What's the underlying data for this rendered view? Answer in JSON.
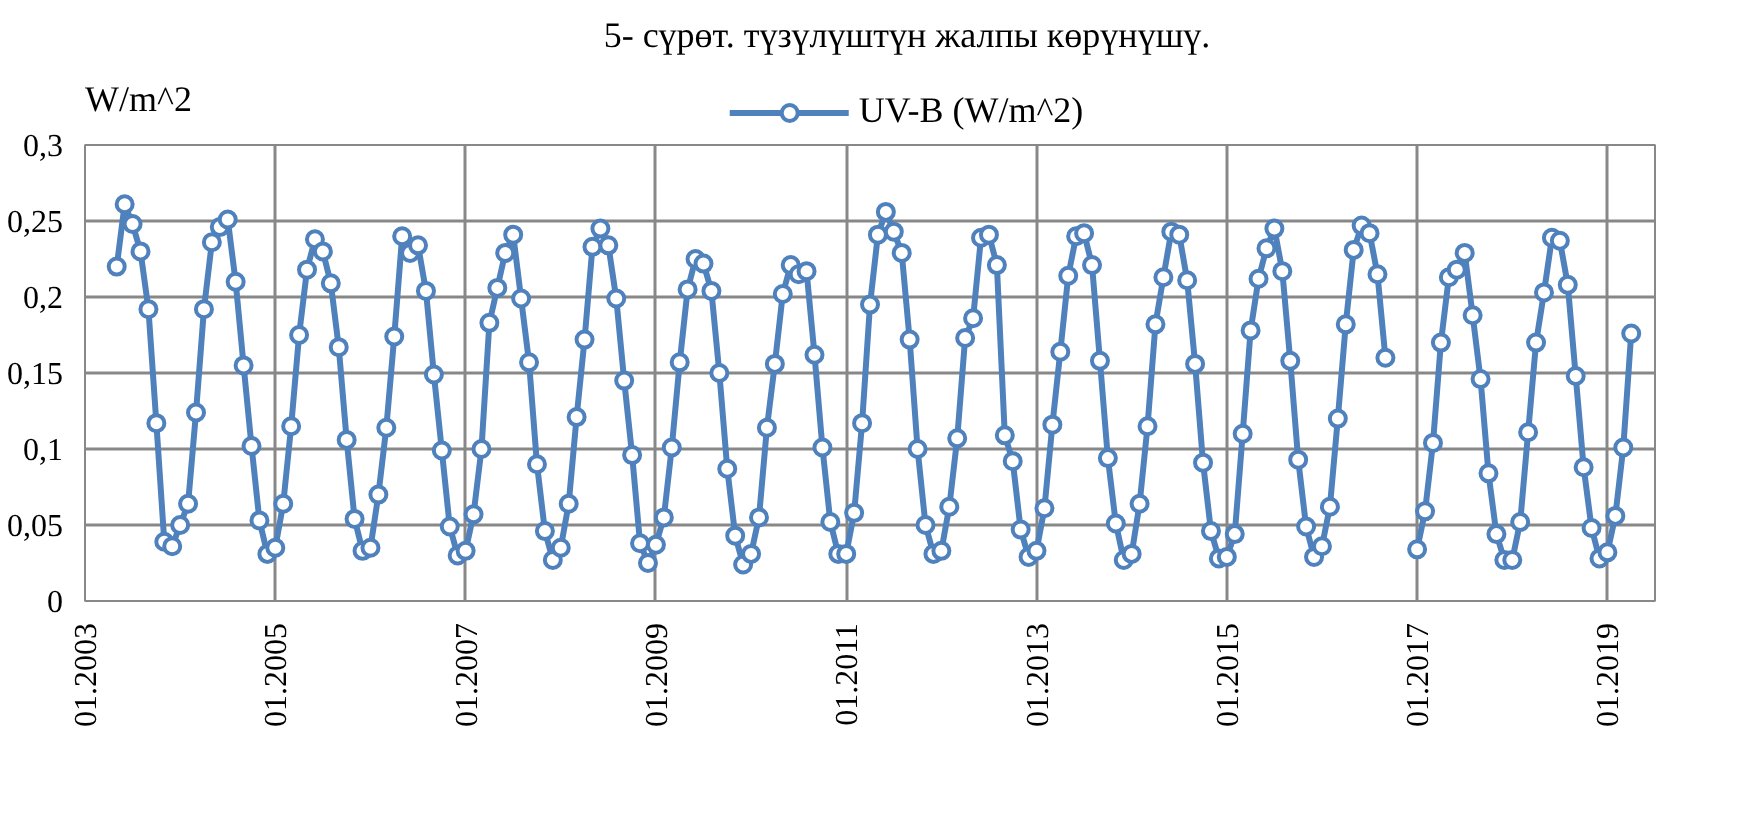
{
  "chart_data": {
    "type": "line",
    "title": "5- сүрөт. түзүлүштүн жалпы көрүнүшү.",
    "ylabel": "W/m^2",
    "x": [
      "2003-05",
      "2003-06",
      "2003-07",
      "2003-08",
      "2003-09",
      "2003-10",
      "2003-11",
      "2003-12",
      "2004-01",
      "2004-02",
      "2004-03",
      "2004-04",
      "2004-05",
      "2004-06",
      "2004-07",
      "2004-08",
      "2004-09",
      "2004-10",
      "2004-11",
      "2004-12",
      "2005-01",
      "2005-02",
      "2005-03",
      "2005-04",
      "2005-05",
      "2005-06",
      "2005-07",
      "2005-08",
      "2005-09",
      "2005-10",
      "2005-11",
      "2005-12",
      "2006-01",
      "2006-02",
      "2006-03",
      "2006-04",
      "2006-05",
      "2006-06",
      "2006-07",
      "2006-08",
      "2006-09",
      "2006-10",
      "2006-11",
      "2006-12",
      "2007-01",
      "2007-02",
      "2007-03",
      "2007-04",
      "2007-05",
      "2007-06",
      "2007-07",
      "2007-08",
      "2007-09",
      "2007-10",
      "2007-11",
      "2007-12",
      "2008-01",
      "2008-02",
      "2008-03",
      "2008-04",
      "2008-05",
      "2008-06",
      "2008-07",
      "2008-08",
      "2008-09",
      "2008-10",
      "2008-11",
      "2008-12",
      "2009-01",
      "2009-02",
      "2009-03",
      "2009-04",
      "2009-05",
      "2009-06",
      "2009-07",
      "2009-08",
      "2009-09",
      "2009-10",
      "2009-11",
      "2009-12",
      "2010-01",
      "2010-02",
      "2010-03",
      "2010-04",
      "2010-05",
      "2010-06",
      "2010-07",
      "2010-08",
      "2010-09",
      "2010-10",
      "2010-11",
      "2010-12",
      "2011-01",
      "2011-02",
      "2011-03",
      "2011-04",
      "2011-05",
      "2011-06",
      "2011-07",
      "2011-08",
      "2011-09",
      "2011-10",
      "2011-11",
      "2011-12",
      "2012-01",
      "2012-02",
      "2012-03",
      "2012-04",
      "2012-05",
      "2012-06",
      "2012-07",
      "2012-08",
      "2012-09",
      "2012-10",
      "2012-11",
      "2012-12",
      "2013-01",
      "2013-02",
      "2013-03",
      "2013-04",
      "2013-05",
      "2013-06",
      "2013-07",
      "2013-08",
      "2013-09",
      "2013-10",
      "2013-11",
      "2013-12",
      "2014-01",
      "2014-02",
      "2014-03",
      "2014-04",
      "2014-05",
      "2014-06",
      "2014-07",
      "2014-08",
      "2014-09",
      "2014-10",
      "2014-11",
      "2014-12",
      "2015-01",
      "2015-02",
      "2015-03",
      "2015-04",
      "2015-05",
      "2015-06",
      "2015-07",
      "2015-08",
      "2015-09",
      "2015-10",
      "2015-11",
      "2015-12",
      "2016-01",
      "2016-02",
      "2016-03",
      "2016-04",
      "2016-05",
      "2016-06",
      "2016-07",
      "2016-08",
      "2016-09",
      "2016-10",
      "2016-11",
      "2016-12",
      "2017-01",
      "2017-02",
      "2017-03",
      "2017-04",
      "2017-05",
      "2017-06",
      "2017-07",
      "2017-08",
      "2017-09",
      "2017-10",
      "2017-11",
      "2017-12",
      "2018-01",
      "2018-02",
      "2018-03",
      "2018-04",
      "2018-05",
      "2018-06",
      "2018-07",
      "2018-08",
      "2018-09",
      "2018-10",
      "2018-11",
      "2018-12",
      "2019-01",
      "2019-02",
      "2019-03",
      "2019-04"
    ],
    "series": [
      {
        "name": "UV-B (W/m^2)",
        "color": "#4f81bd",
        "values": [
          0.22,
          0.261,
          0.248,
          0.23,
          0.192,
          0.117,
          0.039,
          0.036,
          0.05,
          0.064,
          0.124,
          0.192,
          0.236,
          0.246,
          0.251,
          0.21,
          0.155,
          0.102,
          0.053,
          0.031,
          0.035,
          0.064,
          0.115,
          0.175,
          0.218,
          0.238,
          0.23,
          0.209,
          0.167,
          0.106,
          0.054,
          0.033,
          0.035,
          0.07,
          0.114,
          0.174,
          0.24,
          0.229,
          0.234,
          0.204,
          0.149,
          0.099,
          0.049,
          0.03,
          0.033,
          0.057,
          0.1,
          0.183,
          0.206,
          0.229,
          0.241,
          0.199,
          0.157,
          0.09,
          0.046,
          0.027,
          0.035,
          0.064,
          0.121,
          0.172,
          0.233,
          0.245,
          0.234,
          0.199,
          0.145,
          0.096,
          0.038,
          0.025,
          0.037,
          0.055,
          0.101,
          0.157,
          0.205,
          0.225,
          0.222,
          0.204,
          0.15,
          0.087,
          0.043,
          0.024,
          0.031,
          0.055,
          0.114,
          0.156,
          0.202,
          0.221,
          0.215,
          0.217,
          0.162,
          0.101,
          0.052,
          0.031,
          0.031,
          0.058,
          0.117,
          0.195,
          0.241,
          0.256,
          0.243,
          0.229,
          0.172,
          0.1,
          0.05,
          0.031,
          0.033,
          0.062,
          0.107,
          0.173,
          0.186,
          0.239,
          0.241,
          0.221,
          0.109,
          0.092,
          0.047,
          0.029,
          0.033,
          0.061,
          0.116,
          0.164,
          0.214,
          0.24,
          0.242,
          0.221,
          0.158,
          0.094,
          0.051,
          0.027,
          0.031,
          0.064,
          0.115,
          0.182,
          0.213,
          0.243,
          0.241,
          0.211,
          0.156,
          0.091,
          0.046,
          0.028,
          0.029,
          0.044,
          0.11,
          0.178,
          0.212,
          0.232,
          0.245,
          0.217,
          0.158,
          0.093,
          0.049,
          0.029,
          0.036,
          0.062,
          0.12,
          0.182,
          0.231,
          0.247,
          0.242,
          0.215,
          0.16,
          null,
          null,
          null,
          0.034,
          0.059,
          0.104,
          0.17,
          0.213,
          0.218,
          0.229,
          0.188,
          0.146,
          0.084,
          0.044,
          0.027,
          0.027,
          0.052,
          0.111,
          0.17,
          0.203,
          0.239,
          0.237,
          0.208,
          0.148,
          0.088,
          0.048,
          0.028,
          0.032,
          0.056,
          0.101,
          0.176
        ]
      }
    ],
    "xlim": [
      "2003-01",
      "2019-07"
    ],
    "xticks": [
      {
        "value": "2003-01",
        "label": "01.2003"
      },
      {
        "value": "2005-01",
        "label": "01.2005"
      },
      {
        "value": "2007-01",
        "label": "01.2007"
      },
      {
        "value": "2009-01",
        "label": "01.2009"
      },
      {
        "value": "2011-01",
        "label": "01.2011"
      },
      {
        "value": "2013-01",
        "label": "01.2013"
      },
      {
        "value": "2015-01",
        "label": "01.2015"
      },
      {
        "value": "2017-01",
        "label": "01.2017"
      },
      {
        "value": "2019-01",
        "label": "01.2019"
      }
    ],
    "ylim": [
      0,
      0.3
    ],
    "yticks": [
      {
        "value": 0,
        "label": "0"
      },
      {
        "value": 0.05,
        "label": "0,05"
      },
      {
        "value": 0.1,
        "label": "0,1"
      },
      {
        "value": 0.15,
        "label": "0,15"
      },
      {
        "value": 0.2,
        "label": "0,2"
      },
      {
        "value": 0.25,
        "label": "0,25"
      },
      {
        "value": 0.3,
        "label": "0,3"
      }
    ],
    "grid": true,
    "legend": "top",
    "marker": "circle",
    "line_style": "solid"
  }
}
